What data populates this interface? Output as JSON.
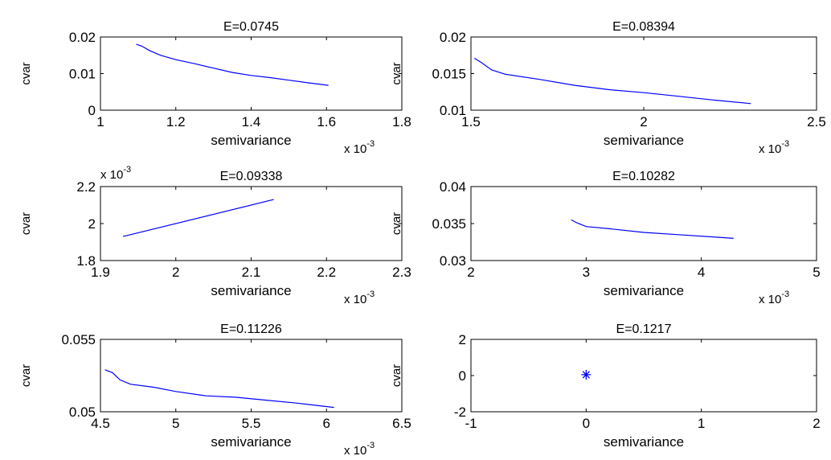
{
  "chart_data": [
    {
      "type": "line",
      "title": "E=0.0745",
      "xlabel": "semivariance",
      "ylabel": "cvar",
      "x_multiplier": "x 10",
      "x_exponent": "-3",
      "y_multiplier": "",
      "y_exponent": "",
      "xlim": [
        1,
        1.8
      ],
      "ylim": [
        0,
        0.02
      ],
      "xticks": [
        1,
        1.2,
        1.4,
        1.6,
        1.8
      ],
      "yticks": [
        0,
        0.01,
        0.02
      ],
      "xtick_labels": [
        "1",
        "1.2",
        "1.4",
        "1.6",
        "1.8"
      ],
      "ytick_labels": [
        "0",
        "0.01",
        "0.02"
      ],
      "marker": "",
      "color": "#0000ff",
      "x": [
        1.095,
        1.11,
        1.13,
        1.16,
        1.2,
        1.25,
        1.3,
        1.35,
        1.4,
        1.45,
        1.5,
        1.55,
        1.605
      ],
      "y": [
        0.018,
        0.0175,
        0.0163,
        0.015,
        0.0138,
        0.0127,
        0.0115,
        0.0103,
        0.0095,
        0.0089,
        0.0082,
        0.0075,
        0.0068
      ]
    },
    {
      "type": "line",
      "title": "E=0.08394",
      "xlabel": "semivariance",
      "ylabel": "cvar",
      "x_multiplier": "x 10",
      "x_exponent": "-3",
      "y_multiplier": "",
      "y_exponent": "",
      "xlim": [
        1.5,
        2.5
      ],
      "ylim": [
        0.01,
        0.02
      ],
      "xticks": [
        1.5,
        2,
        2.5
      ],
      "yticks": [
        0.01,
        0.015,
        0.02
      ],
      "xtick_labels": [
        "1.5",
        "2",
        "2.5"
      ],
      "ytick_labels": [
        "0.01",
        "0.015",
        "0.02"
      ],
      "marker": "",
      "color": "#0000ff",
      "x": [
        1.51,
        1.53,
        1.56,
        1.6,
        1.7,
        1.8,
        1.9,
        2.0,
        2.1,
        2.2,
        2.31
      ],
      "y": [
        0.0171,
        0.0165,
        0.0155,
        0.0149,
        0.0142,
        0.0134,
        0.0128,
        0.0124,
        0.0119,
        0.0114,
        0.0109
      ]
    },
    {
      "type": "line",
      "title": "E=0.09338",
      "xlabel": "semivariance",
      "ylabel": "cvar",
      "x_multiplier": "x 10",
      "x_exponent": "-3",
      "y_multiplier": "x 10",
      "y_exponent": "-3",
      "xlim": [
        1.9,
        2.3
      ],
      "ylim": [
        1.8,
        2.2
      ],
      "xticks": [
        1.9,
        2,
        2.1,
        2.2,
        2.3
      ],
      "yticks": [
        1.8,
        2,
        2.2
      ],
      "xtick_labels": [
        "1.9",
        "2",
        "2.1",
        "2.2",
        "2.3"
      ],
      "ytick_labels": [
        "1.8",
        "2",
        "2.2"
      ],
      "marker": "",
      "color": "#0000ff",
      "x": [
        1.93,
        2.13
      ],
      "y": [
        1.93,
        2.13
      ]
    },
    {
      "type": "line",
      "title": "E=0.10282",
      "xlabel": "semivariance",
      "ylabel": "cvar",
      "x_multiplier": "x 10",
      "x_exponent": "-3",
      "y_multiplier": "",
      "y_exponent": "",
      "xlim": [
        2,
        5
      ],
      "ylim": [
        0.03,
        0.04
      ],
      "xticks": [
        2,
        3,
        4,
        5
      ],
      "yticks": [
        0.03,
        0.035,
        0.04
      ],
      "xtick_labels": [
        "2",
        "3",
        "4",
        "5"
      ],
      "ytick_labels": [
        "0.03",
        "0.035",
        "0.04"
      ],
      "marker": "",
      "color": "#0000ff",
      "x": [
        2.87,
        2.92,
        3.0,
        3.2,
        3.5,
        3.8,
        4.1,
        4.28
      ],
      "y": [
        0.0355,
        0.0351,
        0.0346,
        0.0343,
        0.0338,
        0.0335,
        0.0332,
        0.033
      ]
    },
    {
      "type": "line",
      "title": "E=0.11226",
      "xlabel": "semivariance",
      "ylabel": "cvar",
      "x_multiplier": "x 10",
      "x_exponent": "-3",
      "y_multiplier": "",
      "y_exponent": "",
      "xlim": [
        4.5,
        6.5
      ],
      "ylim": [
        0.05,
        0.055
      ],
      "xticks": [
        4.5,
        5,
        5.5,
        6,
        6.5
      ],
      "yticks": [
        0.05,
        0.055
      ],
      "xtick_labels": [
        "4.5",
        "5",
        "5.5",
        "6",
        "6.5"
      ],
      "ytick_labels": [
        "0.05",
        "0.055"
      ],
      "marker": "",
      "color": "#0000ff",
      "x": [
        4.53,
        4.58,
        4.63,
        4.7,
        4.85,
        5.0,
        5.2,
        5.4,
        5.6,
        5.8,
        6.05
      ],
      "y": [
        0.0529,
        0.0527,
        0.0522,
        0.0519,
        0.0517,
        0.0514,
        0.0511,
        0.051,
        0.0508,
        0.0506,
        0.0503
      ]
    },
    {
      "type": "scatter",
      "title": "E=0.1217",
      "xlabel": "semivariance",
      "ylabel": "cvar",
      "x_multiplier": "",
      "x_exponent": "",
      "y_multiplier": "",
      "y_exponent": "",
      "xlim": [
        -1,
        2
      ],
      "ylim": [
        -2,
        2
      ],
      "xticks": [
        -1,
        0,
        1,
        2
      ],
      "yticks": [
        -2,
        0,
        2
      ],
      "xtick_labels": [
        "-1",
        "0",
        "1",
        "2"
      ],
      "ytick_labels": [
        "-2",
        "0",
        "2"
      ],
      "marker": "*",
      "color": "#0000ff",
      "x": [
        0
      ],
      "y": [
        0.05
      ]
    }
  ]
}
